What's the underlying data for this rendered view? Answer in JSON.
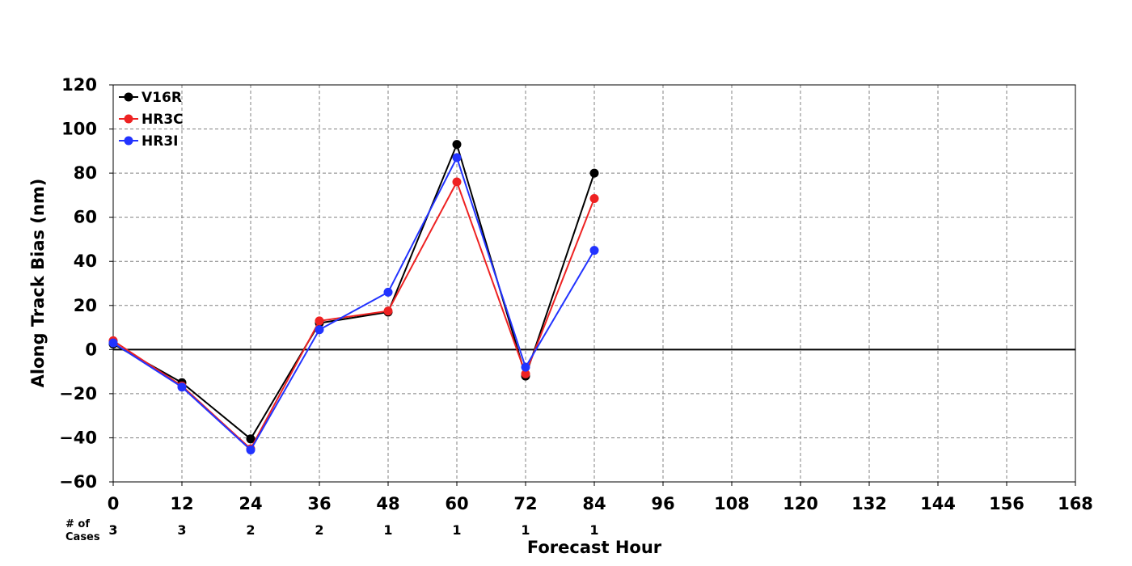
{
  "chart_data": {
    "type": "line",
    "xlabel": "Forecast Hour",
    "ylabel": "Along Track Bias (nm)",
    "xlim": [
      0,
      168
    ],
    "ylim": [
      -60,
      120
    ],
    "x_ticks": [
      0,
      12,
      24,
      36,
      48,
      60,
      72,
      84,
      96,
      108,
      120,
      132,
      144,
      156,
      168
    ],
    "y_ticks": [
      -60,
      -40,
      -20,
      0,
      20,
      40,
      60,
      80,
      100,
      120
    ],
    "y_tick_labels": [
      "−60",
      "−40",
      "−20",
      "0",
      "20",
      "40",
      "60",
      "80",
      "100",
      "120"
    ],
    "grid": true,
    "legend_position": "top-left",
    "series": [
      {
        "name": "V16R",
        "color": "#000000",
        "x": [
          0,
          12,
          24,
          36,
          48,
          60,
          72,
          84
        ],
        "y": [
          2.5,
          -15,
          -40.5,
          12,
          17,
          93,
          -12,
          80
        ]
      },
      {
        "name": "HR3C",
        "color": "#ee2222",
        "x": [
          0,
          12,
          24,
          36,
          48,
          60,
          72,
          84
        ],
        "y": [
          4,
          -16.5,
          -45,
          13,
          17.5,
          76,
          -11,
          68.5
        ]
      },
      {
        "name": "HR3I",
        "color": "#2233ff",
        "x": [
          0,
          12,
          24,
          36,
          48,
          60,
          72,
          84
        ],
        "y": [
          3,
          -17,
          -45.5,
          9,
          26,
          87,
          -8,
          45
        ]
      }
    ],
    "cases": {
      "label_line1": "# of",
      "label_line2": "Cases",
      "x": [
        0,
        12,
        24,
        36,
        48,
        60,
        72,
        84
      ],
      "values": [
        "3",
        "3",
        "2",
        "2",
        "1",
        "1",
        "1",
        "1"
      ]
    }
  }
}
